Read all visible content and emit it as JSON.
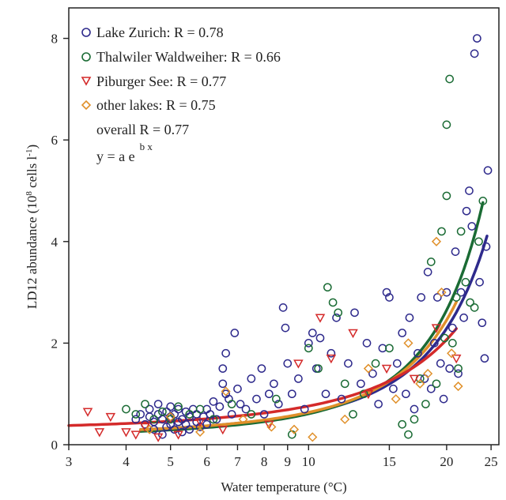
{
  "chart_data": {
    "type": "scatter",
    "xlabel": "Water temperature (°C)",
    "ylabel_main": "LD12 abundance (10",
    "ylabel_sup": "8",
    "ylabel_rest": " cells l",
    "ylabel_sup2": "-1",
    "ylabel_end": ")",
    "x_scale": "log",
    "xlim": [
      3,
      26
    ],
    "ylim": [
      0,
      8.6
    ],
    "x_ticks": [
      3,
      4,
      5,
      6,
      7,
      8,
      9,
      10,
      15,
      20,
      25
    ],
    "x_tick_labels": [
      "3",
      "4",
      "5",
      "6",
      "7",
      "8",
      "9",
      "10",
      "15",
      "20",
      "25"
    ],
    "y_ticks": [
      0,
      2,
      4,
      6,
      8
    ],
    "y_tick_labels": [
      "0",
      "2",
      "4",
      "6",
      "8"
    ],
    "grid": false,
    "legend_placement": "top-left",
    "legend": {
      "entries": [
        {
          "label": "Lake Zurich: R = 0.78",
          "marker": "circle",
          "color": "#2e2a8c"
        },
        {
          "label": "Thalwiler Waldweiher: R = 0.66",
          "marker": "circle",
          "color": "#1a6b34"
        },
        {
          "label": "Piburger See: R = 0.77",
          "marker": "triangle-down",
          "color": "#d42a2a"
        },
        {
          "label": "other lakes: R = 0.75",
          "marker": "diamond",
          "color": "#e0902a"
        }
      ],
      "overall": "overall R = 0.77",
      "equation_main": "y = a e",
      "equation_sup": "b x"
    },
    "series": [
      {
        "name": "Lake Zurich: R = 0.78",
        "color": "#2e2a8c",
        "marker": "circle",
        "points": [
          [
            4.2,
            0.5
          ],
          [
            4.3,
            0.6
          ],
          [
            4.4,
            0.4
          ],
          [
            4.5,
            0.55
          ],
          [
            4.5,
            0.7
          ],
          [
            4.6,
            0.3
          ],
          [
            4.6,
            0.45
          ],
          [
            4.7,
            0.6
          ],
          [
            4.7,
            0.8
          ],
          [
            4.8,
            0.2
          ],
          [
            4.8,
            0.5
          ],
          [
            4.9,
            0.35
          ],
          [
            4.9,
            0.65
          ],
          [
            5.0,
            0.4
          ],
          [
            5.0,
            0.55
          ],
          [
            5.0,
            0.75
          ],
          [
            5.1,
            0.3
          ],
          [
            5.1,
            0.6
          ],
          [
            5.2,
            0.45
          ],
          [
            5.2,
            0.7
          ],
          [
            5.3,
            0.25
          ],
          [
            5.3,
            0.5
          ],
          [
            5.4,
            0.65
          ],
          [
            5.4,
            0.4
          ],
          [
            5.5,
            0.55
          ],
          [
            5.5,
            0.3
          ],
          [
            5.6,
            0.7
          ],
          [
            5.7,
            0.45
          ],
          [
            5.7,
            0.6
          ],
          [
            5.8,
            0.35
          ],
          [
            5.9,
            0.55
          ],
          [
            6.0,
            0.7
          ],
          [
            6.0,
            0.4
          ],
          [
            6.1,
            0.6
          ],
          [
            6.2,
            0.85
          ],
          [
            6.3,
            0.5
          ],
          [
            6.4,
            0.75
          ],
          [
            6.5,
            1.2
          ],
          [
            6.5,
            1.5
          ],
          [
            6.6,
            1.8
          ],
          [
            6.6,
            1.0
          ],
          [
            6.7,
            0.9
          ],
          [
            6.8,
            0.6
          ],
          [
            6.9,
            2.2
          ],
          [
            7.0,
            1.1
          ],
          [
            7.1,
            0.8
          ],
          [
            7.3,
            0.7
          ],
          [
            7.5,
            1.3
          ],
          [
            7.7,
            0.9
          ],
          [
            7.9,
            1.5
          ],
          [
            8.0,
            0.6
          ],
          [
            8.2,
            1.0
          ],
          [
            8.4,
            1.2
          ],
          [
            8.6,
            0.8
          ],
          [
            8.8,
            2.7
          ],
          [
            8.9,
            2.3
          ],
          [
            9.0,
            1.6
          ],
          [
            9.2,
            1.0
          ],
          [
            9.5,
            1.3
          ],
          [
            9.8,
            0.7
          ],
          [
            10.0,
            2.0
          ],
          [
            10.2,
            2.2
          ],
          [
            10.4,
            1.5
          ],
          [
            10.6,
            2.1
          ],
          [
            10.9,
            1.0
          ],
          [
            11.2,
            1.8
          ],
          [
            11.5,
            2.5
          ],
          [
            11.8,
            0.9
          ],
          [
            12.2,
            1.6
          ],
          [
            12.6,
            2.6
          ],
          [
            13.0,
            1.2
          ],
          [
            13.4,
            2.0
          ],
          [
            13.8,
            1.4
          ],
          [
            14.2,
            0.8
          ],
          [
            14.5,
            1.9
          ],
          [
            14.8,
            3.0
          ],
          [
            15.0,
            2.9
          ],
          [
            15.3,
            1.1
          ],
          [
            15.6,
            1.6
          ],
          [
            16.0,
            2.2
          ],
          [
            16.3,
            1.0
          ],
          [
            16.6,
            2.5
          ],
          [
            17.0,
            0.7
          ],
          [
            17.3,
            1.8
          ],
          [
            17.6,
            2.9
          ],
          [
            17.9,
            1.3
          ],
          [
            18.2,
            3.4
          ],
          [
            18.5,
            1.1
          ],
          [
            18.8,
            2.0
          ],
          [
            19.1,
            2.9
          ],
          [
            19.4,
            1.6
          ],
          [
            19.7,
            0.9
          ],
          [
            20.0,
            3.0
          ],
          [
            20.3,
            1.5
          ],
          [
            20.6,
            2.3
          ],
          [
            20.9,
            3.8
          ],
          [
            21.2,
            1.4
          ],
          [
            21.5,
            3.0
          ],
          [
            21.8,
            2.5
          ],
          [
            22.1,
            4.6
          ],
          [
            22.4,
            5.0
          ],
          [
            22.7,
            4.3
          ],
          [
            23.0,
            7.7
          ],
          [
            23.3,
            8.0
          ],
          [
            23.6,
            3.2
          ],
          [
            23.9,
            2.4
          ],
          [
            24.2,
            1.7
          ],
          [
            24.6,
            5.4
          ],
          [
            24.4,
            3.9
          ]
        ]
      },
      {
        "name": "Thalwiler Waldweiher: R = 0.66",
        "color": "#1a6b34",
        "marker": "circle",
        "points": [
          [
            4.0,
            0.7
          ],
          [
            4.2,
            0.6
          ],
          [
            4.4,
            0.8
          ],
          [
            4.6,
            0.5
          ],
          [
            4.8,
            0.65
          ],
          [
            5.0,
            0.5
          ],
          [
            5.2,
            0.75
          ],
          [
            5.5,
            0.6
          ],
          [
            5.8,
            0.7
          ],
          [
            6.2,
            0.5
          ],
          [
            6.8,
            0.8
          ],
          [
            7.5,
            0.6
          ],
          [
            8.5,
            0.9
          ],
          [
            9.2,
            0.2
          ],
          [
            10.0,
            1.9
          ],
          [
            10.5,
            1.5
          ],
          [
            11.0,
            3.1
          ],
          [
            11.3,
            2.8
          ],
          [
            11.6,
            2.6
          ],
          [
            12.0,
            1.2
          ],
          [
            12.5,
            0.6
          ],
          [
            13.2,
            1.0
          ],
          [
            14.0,
            1.6
          ],
          [
            15.0,
            1.9
          ],
          [
            16.0,
            0.4
          ],
          [
            16.5,
            0.2
          ],
          [
            17.0,
            0.5
          ],
          [
            17.5,
            1.3
          ],
          [
            18.0,
            0.8
          ],
          [
            18.5,
            3.6
          ],
          [
            19.0,
            1.2
          ],
          [
            19.5,
            4.2
          ],
          [
            20.0,
            4.9
          ],
          [
            20.3,
            7.2
          ],
          [
            20.0,
            6.3
          ],
          [
            20.6,
            2.0
          ],
          [
            21.0,
            2.9
          ],
          [
            21.5,
            4.2
          ],
          [
            22.0,
            3.2
          ],
          [
            22.5,
            2.8
          ],
          [
            23.0,
            2.7
          ],
          [
            23.5,
            4.0
          ],
          [
            24.0,
            4.8
          ],
          [
            21.2,
            1.5
          ],
          [
            19.8,
            2.1
          ]
        ]
      },
      {
        "name": "Piburger See: R = 0.77",
        "color": "#d42a2a",
        "marker": "triangle-down",
        "points": [
          [
            3.3,
            0.65
          ],
          [
            3.5,
            0.25
          ],
          [
            3.7,
            0.55
          ],
          [
            4.0,
            0.25
          ],
          [
            4.2,
            0.2
          ],
          [
            4.4,
            0.35
          ],
          [
            4.7,
            0.15
          ],
          [
            5.2,
            0.2
          ],
          [
            5.8,
            0.45
          ],
          [
            6.5,
            0.3
          ],
          [
            8.2,
            0.4
          ],
          [
            9.5,
            1.6
          ],
          [
            10.6,
            2.5
          ],
          [
            11.2,
            1.7
          ],
          [
            12.5,
            2.2
          ],
          [
            13.5,
            1.0
          ],
          [
            14.8,
            1.5
          ],
          [
            17.0,
            1.3
          ],
          [
            19.0,
            2.3
          ],
          [
            21.0,
            1.7
          ]
        ]
      },
      {
        "name": "other lakes: R = 0.75",
        "color": "#e0902a",
        "marker": "diamond",
        "points": [
          [
            4.5,
            0.3
          ],
          [
            5.0,
            0.55
          ],
          [
            5.8,
            0.25
          ],
          [
            6.6,
            1.05
          ],
          [
            7.2,
            0.5
          ],
          [
            8.3,
            0.35
          ],
          [
            9.3,
            0.3
          ],
          [
            10.2,
            0.15
          ],
          [
            12.0,
            0.5
          ],
          [
            13.5,
            1.5
          ],
          [
            15.5,
            0.9
          ],
          [
            16.5,
            2.0
          ],
          [
            17.5,
            1.2
          ],
          [
            19.0,
            4.0
          ],
          [
            19.5,
            3.0
          ],
          [
            20.5,
            1.8
          ],
          [
            21.2,
            1.15
          ],
          [
            18.2,
            1.4
          ]
        ]
      }
    ],
    "fits": [
      {
        "name": "Lake Zurich: R = 0.78",
        "color": "#2e2a8c",
        "x_range": [
          4.3,
          24.5
        ],
        "a": 0.17,
        "b": 0.13
      },
      {
        "name": "Thalwiler Waldweiher: R = 0.66",
        "color": "#1a6b34",
        "x_range": [
          4.3,
          24.0
        ],
        "a": 0.14,
        "b": 0.147
      },
      {
        "name": "other lakes: R = 0.75",
        "color": "#e0902a",
        "x_range": [
          4.3,
          21.0
        ],
        "a": 0.165,
        "b": 0.135
      },
      {
        "name": "Piburger See: R = 0.77",
        "color": "#d42a2a",
        "x_range": [
          3.0,
          21.0
        ],
        "a": 0.28,
        "b": 0.1
      }
    ]
  }
}
